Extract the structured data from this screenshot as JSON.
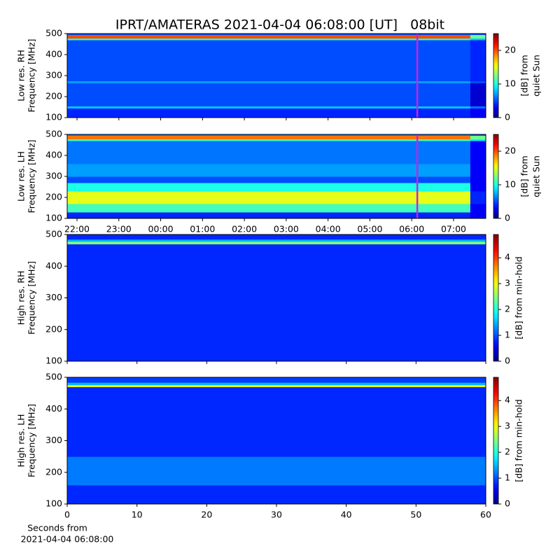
{
  "chart_data": [
    {
      "type": "heatmap",
      "title": "IPRT/AMATERAS 2021-04-04 06:08:00 [UT]   08bit",
      "y_label": [
        "Low res. RH",
        "Frequency [MHz]"
      ],
      "xlim": [
        21.766,
        31.77
      ],
      "xticks": [
        22,
        23,
        24,
        25,
        26,
        27,
        28,
        29,
        30,
        31
      ],
      "ylim": [
        100,
        500
      ],
      "yticks": [
        100,
        200,
        300,
        400,
        500
      ],
      "x_edges": [
        21.766,
        31.4,
        31.77
      ],
      "y_edges": [
        100,
        145,
        155,
        265,
        275,
        470,
        478,
        495,
        500
      ],
      "z": [
        [
          4,
          3
        ],
        [
          8,
          6
        ],
        [
          5,
          2
        ],
        [
          7,
          5
        ],
        [
          5,
          4
        ],
        [
          10,
          8
        ],
        [
          20,
          12
        ],
        [
          5,
          5
        ]
      ],
      "colorscale": "jet",
      "clim": [
        0,
        25
      ],
      "cticks": [
        0,
        10,
        20
      ],
      "colorbar_label": [
        "[dB] from",
        "quiet Sun"
      ],
      "vline": 30.133,
      "vline_color": "#cc22dd"
    },
    {
      "type": "heatmap",
      "y_label": [
        "Low res. LH",
        "Frequency [MHz]"
      ],
      "xlim": [
        21.766,
        31.77
      ],
      "xticks": [
        {
          "value": 22,
          "label": "22:00"
        },
        {
          "value": 23,
          "label": "23:00"
        },
        {
          "value": 24,
          "label": "00:00"
        },
        {
          "value": 25,
          "label": "01:00"
        },
        {
          "value": 26,
          "label": "02:00"
        },
        {
          "value": 27,
          "label": "03:00"
        },
        {
          "value": 28,
          "label": "04:00"
        },
        {
          "value": 29,
          "label": "05:00"
        },
        {
          "value": 30,
          "label": "06:00"
        },
        {
          "value": 31,
          "label": "07:00"
        }
      ],
      "ylim": [
        100,
        500
      ],
      "yticks": [
        100,
        200,
        300,
        400,
        500
      ],
      "x_edges": [
        21.766,
        31.4,
        31.77
      ],
      "y_edges": [
        100,
        130,
        170,
        230,
        270,
        300,
        360,
        470,
        478,
        495,
        500
      ],
      "z": [
        [
          4,
          3
        ],
        [
          11,
          3
        ],
        [
          15,
          4
        ],
        [
          10,
          3
        ],
        [
          5,
          3
        ],
        [
          7,
          3
        ],
        [
          6,
          3
        ],
        [
          11,
          9
        ],
        [
          19,
          12
        ],
        [
          6,
          5
        ]
      ],
      "colorscale": "jet",
      "clim": [
        0,
        25
      ],
      "cticks": [
        0,
        10,
        20
      ],
      "colorbar_label": [
        "[dB] from",
        "quiet Sun"
      ],
      "vline": 30.133,
      "vline_color": "#cc22dd"
    },
    {
      "type": "heatmap",
      "y_label": [
        "High res. RH",
        "Frequency [MHz]"
      ],
      "xlim": [
        0,
        60
      ],
      "xticks": [
        0,
        10,
        20,
        30,
        40,
        50,
        60
      ],
      "ylim": [
        100,
        500
      ],
      "yticks": [
        100,
        200,
        300,
        400,
        500
      ],
      "x_edges": [
        0,
        60
      ],
      "y_edges": [
        100,
        470,
        478,
        485,
        500
      ],
      "z": [
        [
          0.8
        ],
        [
          2.5
        ],
        [
          1.5
        ],
        [
          0.8
        ]
      ],
      "colorscale": "jet",
      "clim": [
        0,
        4.9
      ],
      "cticks": [
        0,
        1,
        2,
        3,
        4
      ],
      "colorbar_label": [
        "[dB] from min-hold"
      ]
    },
    {
      "type": "heatmap",
      "y_label": [
        "High res. LH",
        "Frequency [MHz]"
      ],
      "x_label": [
        "Seconds from",
        "2021-04-04 06:08:00"
      ],
      "xlim": [
        0,
        60
      ],
      "xticks": [
        0,
        10,
        20,
        30,
        40,
        50,
        60
      ],
      "ylim": [
        100,
        500
      ],
      "yticks": [
        100,
        200,
        300,
        400,
        500
      ],
      "x_edges": [
        0,
        60
      ],
      "y_edges": [
        100,
        160,
        250,
        470,
        476,
        484,
        500
      ],
      "z": [
        [
          0.8
        ],
        [
          1.2
        ],
        [
          0.8
        ],
        [
          3
        ],
        [
          1.5
        ],
        [
          0.9
        ]
      ],
      "colorscale": "jet",
      "clim": [
        0,
        4.9
      ],
      "cticks": [
        0,
        1,
        2,
        3,
        4
      ],
      "colorbar_label": [
        "[dB] from min-hold"
      ]
    }
  ]
}
